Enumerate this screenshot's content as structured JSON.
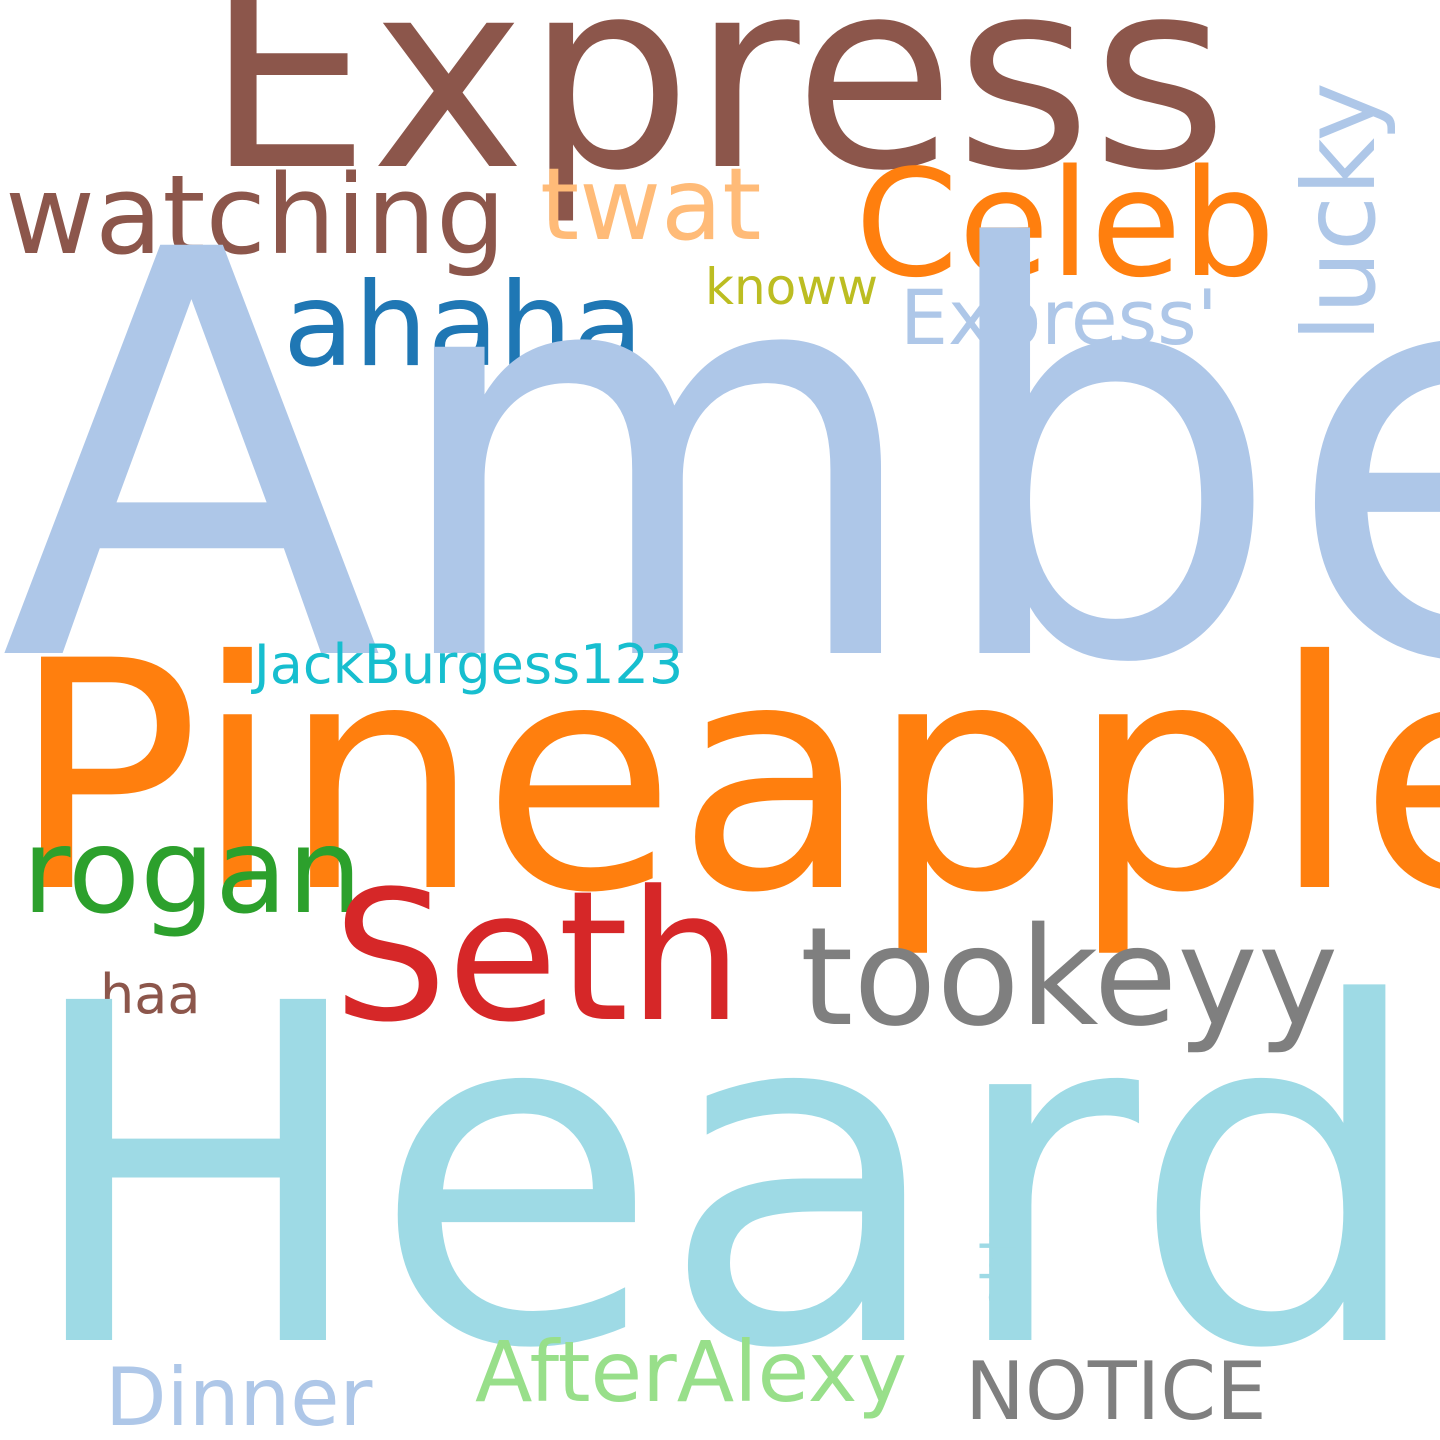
{
  "wordcloud": {
    "background": "#ffffff",
    "words": [
      {
        "text": "Express",
        "color": "#8c564b"
      },
      {
        "text": "watching",
        "color": "#8c564b"
      },
      {
        "text": "twat",
        "color": "#ffbb78"
      },
      {
        "text": "Celeb",
        "color": "#ff7f0e"
      },
      {
        "text": "lucky",
        "color": "#aec7e8"
      },
      {
        "text": "knoww",
        "color": "#bcbd22"
      },
      {
        "text": "Express'",
        "color": "#aec7e8"
      },
      {
        "text": "ahaha",
        "color": "#1f77b4"
      },
      {
        "text": "Amber",
        "color": "#aec7e8"
      },
      {
        "text": "•JackBurgess123",
        "color": "#17becf"
      },
      {
        "text": "Pineapple",
        "color": "#ff7f0e"
      },
      {
        "text": "rogan",
        "color": "#2ca02c"
      },
      {
        "text": "Seth",
        "color": "#d62728"
      },
      {
        "text": "tookeyy",
        "color": "#7f7f7f"
      },
      {
        "text": "haa",
        "color": "#8c564b"
      },
      {
        "text": "Heard",
        "color": "#9edae5"
      },
      {
        "text": "ohh",
        "color": "#9edae5"
      },
      {
        "text": "AfterAlexy",
        "color": "#98df8a"
      },
      {
        "text": "Dinner",
        "color": "#aec7e8"
      },
      {
        "text": "NOTICE",
        "color": "#7f7f7f"
      }
    ]
  }
}
